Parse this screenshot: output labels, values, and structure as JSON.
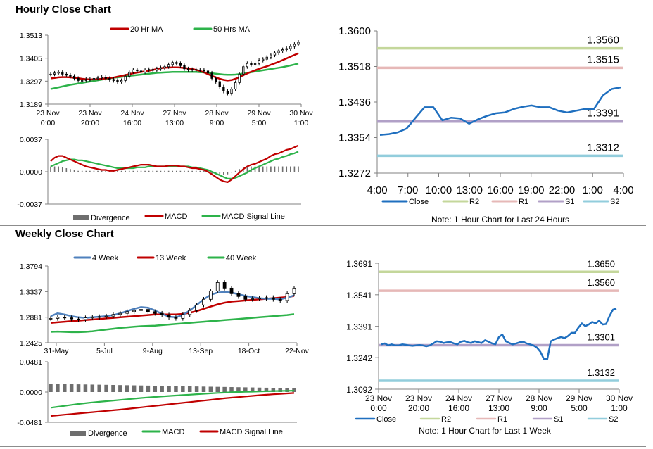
{
  "sections": {
    "hourly_title": "Hourly Close Chart",
    "weekly_title": "Weekly Close Chart"
  },
  "chart_data": [
    {
      "id": "hourly-price",
      "type": "candlestick",
      "legend": [
        "20 Hr MA",
        "50 Hrs MA"
      ],
      "colors": {
        "ma20": "#c00000",
        "ma50": "#2db34a",
        "candle": "#000000"
      },
      "y_ticks": [
        "1.3189",
        "1.3297",
        "1.3405",
        "1.3513"
      ],
      "ylim": [
        1.3189,
        1.3513
      ],
      "x_ticks": [
        [
          "23 Nov",
          "0:00"
        ],
        [
          "23 Nov",
          "20:00"
        ],
        [
          "24 Nov",
          "16:00"
        ],
        [
          "27 Nov",
          "13:00"
        ],
        [
          "28 Nov",
          "9:00"
        ],
        [
          "29 Nov",
          "5:00"
        ],
        [
          "30 Nov",
          "1:00"
        ]
      ],
      "close": [
        1.333,
        1.3335,
        1.334,
        1.333,
        1.3325,
        1.332,
        1.331,
        1.33,
        1.33,
        1.3305,
        1.3305,
        1.331,
        1.3312,
        1.3315,
        1.331,
        1.3305,
        1.33,
        1.3295,
        1.33,
        1.332,
        1.334,
        1.335,
        1.3345,
        1.334,
        1.335,
        1.3352,
        1.3348,
        1.3355,
        1.336,
        1.3365,
        1.3375,
        1.3385,
        1.338,
        1.337,
        1.3355,
        1.335,
        1.3352,
        1.335,
        1.335,
        1.3345,
        1.3335,
        1.331,
        1.3295,
        1.327,
        1.325,
        1.324,
        1.326,
        1.329,
        1.333,
        1.3365,
        1.338,
        1.3375,
        1.338,
        1.3395,
        1.34,
        1.341,
        1.342,
        1.343,
        1.344,
        1.3445,
        1.345,
        1.346,
        1.347,
        1.348
      ],
      "ma20": [
        1.331,
        1.3312,
        1.3315,
        1.3316,
        1.3316,
        1.3315,
        1.3313,
        1.3311,
        1.3308,
        1.3306,
        1.3305,
        1.3305,
        1.3306,
        1.3308,
        1.331,
        1.3312,
        1.3314,
        1.3318,
        1.3322,
        1.3326,
        1.333,
        1.3334,
        1.3337,
        1.334,
        1.3343,
        1.3346,
        1.335,
        1.3354,
        1.3358,
        1.336,
        1.3361,
        1.3362,
        1.3362,
        1.3361,
        1.3359,
        1.3357,
        1.3354,
        1.335,
        1.3345,
        1.3338,
        1.333,
        1.3322,
        1.3315,
        1.3308,
        1.3303,
        1.33,
        1.3302,
        1.3308,
        1.3316,
        1.3325,
        1.3333,
        1.3341,
        1.3348,
        1.3355,
        1.3361,
        1.3367,
        1.3374,
        1.3381,
        1.3388,
        1.3396,
        1.3404,
        1.3412,
        1.342,
        1.3428
      ],
      "ma50": [
        1.326,
        1.3264,
        1.3268,
        1.3272,
        1.3276,
        1.328,
        1.3283,
        1.3286,
        1.3289,
        1.3292,
        1.3295,
        1.3298,
        1.3301,
        1.3304,
        1.3307,
        1.331,
        1.3313,
        1.3315,
        1.3317,
        1.332,
        1.3322,
        1.3324,
        1.3326,
        1.3328,
        1.333,
        1.3332,
        1.3334,
        1.3336,
        1.3337,
        1.3338,
        1.3339,
        1.334,
        1.334,
        1.334,
        1.334,
        1.334,
        1.334,
        1.334,
        1.3339,
        1.3338,
        1.3336,
        1.3334,
        1.3332,
        1.333,
        1.3328,
        1.3327,
        1.3327,
        1.3328,
        1.333,
        1.3333,
        1.3336,
        1.3339,
        1.3342,
        1.3345,
        1.3348,
        1.3351,
        1.3354,
        1.3357,
        1.336,
        1.3363,
        1.3367,
        1.3371,
        1.3375,
        1.338
      ]
    },
    {
      "id": "hourly-macd",
      "type": "bar+line",
      "legend": [
        "Divergence",
        "MACD",
        "MACD Signal Line"
      ],
      "colors": {
        "divergence": "#6e6e6e",
        "macd": "#c00000",
        "signal": "#2db34a"
      },
      "y_ticks": [
        "0.0037",
        "0.0000",
        "-0.0037"
      ],
      "ylim": [
        -0.0037,
        0.0037
      ],
      "macd": [
        0.0012,
        0.0016,
        0.0018,
        0.0018,
        0.0016,
        0.0014,
        0.0012,
        0.001,
        0.0008,
        0.0006,
        0.0005,
        0.0004,
        0.0003,
        0.0002,
        0.0002,
        0.0001,
        0.0001,
        0.0002,
        0.0003,
        0.0004,
        0.0005,
        0.0006,
        0.0007,
        0.0008,
        0.0008,
        0.0008,
        0.0007,
        0.0006,
        0.0006,
        0.0006,
        0.0007,
        0.0007,
        0.0007,
        0.0006,
        0.0006,
        0.0005,
        0.0004,
        0.0004,
        0.0003,
        0.0002,
        0.0,
        -0.0003,
        -0.0006,
        -0.0009,
        -0.0011,
        -0.0012,
        -0.0009,
        -0.0005,
        -0.0001,
        0.0003,
        0.0006,
        0.0008,
        0.0009,
        0.0011,
        0.0013,
        0.0015,
        0.0018,
        0.002,
        0.0021,
        0.0023,
        0.0025,
        0.0026,
        0.0028,
        0.003
      ],
      "signal": [
        0.0006,
        0.0008,
        0.001,
        0.0012,
        0.0013,
        0.0014,
        0.0014,
        0.0013,
        0.0013,
        0.0012,
        0.0011,
        0.001,
        0.0009,
        0.0008,
        0.0007,
        0.0006,
        0.0005,
        0.0004,
        0.0004,
        0.0004,
        0.0004,
        0.0004,
        0.0005,
        0.0005,
        0.0005,
        0.0006,
        0.0006,
        0.0006,
        0.0006,
        0.0006,
        0.0006,
        0.0006,
        0.0006,
        0.0006,
        0.0006,
        0.0006,
        0.0005,
        0.0005,
        0.0004,
        0.0003,
        0.0002,
        0.0,
        -0.0002,
        -0.0004,
        -0.0006,
        -0.0008,
        -0.0008,
        -0.0007,
        -0.0005,
        -0.0003,
        -0.0001,
        0.0002,
        0.0004,
        0.0006,
        0.0008,
        0.001,
        0.0012,
        0.0014,
        0.0015,
        0.0017,
        0.0018,
        0.002,
        0.0021,
        0.0023
      ],
      "divergence": [
        0.0006,
        0.0006,
        0.0006,
        0.0005,
        0.0004,
        0.0003,
        0.0002,
        0.0001,
        0.0001,
        0.0001,
        0.0001,
        0.0001,
        0.0001,
        0.0001,
        0.0001,
        0.0001,
        0.0001,
        0.0001,
        0.0001,
        0.0001,
        0.0001,
        0.0001,
        0.0001,
        0.0001,
        0.0001,
        0.0001,
        0.0001,
        0.0001,
        0.0001,
        0.0001,
        0.0001,
        0.0001,
        0.0001,
        0.0001,
        0.0001,
        0.0001,
        0.0001,
        0.0001,
        0.0001,
        0.0001,
        -0.0001,
        -0.0002,
        -0.0003,
        -0.0004,
        -0.0004,
        -0.0003,
        -0.0001,
        0.0001,
        0.0003,
        0.0005,
        0.0006,
        0.0006,
        0.0006,
        0.0006,
        0.0006,
        0.0006,
        0.0006,
        0.0006,
        0.0006,
        0.0006,
        0.0006,
        0.0006,
        0.0006,
        0.0006
      ]
    },
    {
      "id": "hourly-24h",
      "type": "line",
      "y_ticks": [
        "1.3600",
        "1.3518",
        "1.3436",
        "1.3354",
        "1.3272"
      ],
      "ylim": [
        1.3272,
        1.36
      ],
      "x_ticks": [
        "4:00",
        "7:00",
        "10:00",
        "13:00",
        "16:00",
        "19:00",
        "22:00",
        "1:00",
        "4:00"
      ],
      "series": [
        {
          "name": "Close",
          "color": "#1f6fbf",
          "values": [
            1.336,
            1.3362,
            1.3366,
            1.3375,
            1.34,
            1.3424,
            1.3424,
            1.3394,
            1.34,
            1.3398,
            1.3386,
            1.3396,
            1.3404,
            1.341,
            1.3412,
            1.342,
            1.3425,
            1.3428,
            1.3424,
            1.3424,
            1.3416,
            1.3412,
            1.3416,
            1.342,
            1.342,
            1.3451,
            1.3466,
            1.347
          ]
        }
      ],
      "levels": [
        {
          "name": "R2",
          "value": 1.356,
          "label": "1.3560",
          "color": "#c4d79b"
        },
        {
          "name": "R1",
          "value": 1.3515,
          "label": "1.3515",
          "color": "#e6b8b7"
        },
        {
          "name": "S1",
          "value": 1.3391,
          "label": "1.3391",
          "color": "#b1a0c7"
        },
        {
          "name": "S2",
          "value": 1.3312,
          "label": "1.3312",
          "color": "#92cddc"
        }
      ],
      "legend": [
        "Close",
        "R2",
        "R1",
        "S1",
        "S2"
      ],
      "note": "Note: 1 Hour Chart for Last 24 Hours"
    },
    {
      "id": "weekly-price",
      "type": "candlestick",
      "legend": [
        "4 Week",
        "13 Week",
        "40 Week"
      ],
      "colors": {
        "w4": "#4f81bd",
        "w13": "#c00000",
        "w40": "#2db34a",
        "candle": "#000000"
      },
      "y_ticks": [
        "1.3794",
        "1.3337",
        "1.2881",
        "1.2425"
      ],
      "ylim": [
        1.2425,
        1.3794
      ],
      "x_ticks": [
        "31-May",
        "5-Jul",
        "9-Aug",
        "13-Sep",
        "18-Oct",
        "22-Nov"
      ],
      "close": [
        1.286,
        1.288,
        1.287,
        1.285,
        1.284,
        1.287,
        1.288,
        1.289,
        1.29,
        1.293,
        1.295,
        1.298,
        1.3,
        1.302,
        1.298,
        1.295,
        1.292,
        1.288,
        1.286,
        1.293,
        1.3,
        1.31,
        1.32,
        1.335,
        1.35,
        1.34,
        1.33,
        1.325,
        1.32,
        1.321,
        1.322,
        1.323,
        1.32,
        1.318,
        1.33,
        1.34
      ],
      "w4": [
        1.29,
        1.295,
        1.293,
        1.29,
        1.288,
        1.287,
        1.288,
        1.289,
        1.29,
        1.292,
        1.295,
        1.299,
        1.303,
        1.306,
        1.305,
        1.3,
        1.294,
        1.289,
        1.288,
        1.292,
        1.3,
        1.31,
        1.32,
        1.328,
        1.332,
        1.333,
        1.332,
        1.329,
        1.326,
        1.324,
        1.322,
        1.321,
        1.321,
        1.32,
        1.323,
        1.327
      ],
      "w13": [
        1.278,
        1.279,
        1.28,
        1.281,
        1.282,
        1.283,
        1.284,
        1.285,
        1.286,
        1.287,
        1.288,
        1.289,
        1.29,
        1.291,
        1.292,
        1.293,
        1.293,
        1.293,
        1.293,
        1.294,
        1.296,
        1.299,
        1.303,
        1.307,
        1.311,
        1.314,
        1.316,
        1.317,
        1.318,
        1.319,
        1.32,
        1.321,
        1.322,
        1.323,
        1.324,
        1.326
      ],
      "w40": [
        1.262,
        1.2625,
        1.262,
        1.2615,
        1.2615,
        1.262,
        1.263,
        1.2645,
        1.266,
        1.2675,
        1.269,
        1.27,
        1.271,
        1.272,
        1.2725,
        1.273,
        1.274,
        1.275,
        1.276,
        1.277,
        1.278,
        1.279,
        1.28,
        1.281,
        1.282,
        1.283,
        1.284,
        1.285,
        1.286,
        1.287,
        1.288,
        1.289,
        1.29,
        1.291,
        1.292,
        1.2935
      ]
    },
    {
      "id": "weekly-macd",
      "type": "bar+line",
      "legend": [
        "Divergence",
        "MACD",
        "MACD Signal Line"
      ],
      "colors": {
        "divergence": "#6e6e6e",
        "macd": "#2db34a",
        "signal": "#c00000"
      },
      "y_ticks": [
        "0.0481",
        "0.0000",
        "-0.0481"
      ],
      "ylim": [
        -0.0481,
        0.0481
      ],
      "macd": [
        -0.025,
        -0.0235,
        -0.022,
        -0.0205,
        -0.019,
        -0.0178,
        -0.0166,
        -0.0155,
        -0.0145,
        -0.0135,
        -0.0125,
        -0.0115,
        -0.0105,
        -0.0095,
        -0.0086,
        -0.0078,
        -0.007,
        -0.0063,
        -0.0056,
        -0.0049,
        -0.0042,
        -0.0035,
        -0.0028,
        -0.0021,
        -0.0015,
        -0.001,
        -0.0005,
        0.0,
        0.0003,
        0.0006,
        0.0009,
        0.0012,
        0.0015,
        0.0017,
        0.0019,
        0.0021
      ],
      "signal": [
        -0.038,
        -0.037,
        -0.036,
        -0.035,
        -0.034,
        -0.033,
        -0.032,
        -0.031,
        -0.03,
        -0.029,
        -0.028,
        -0.0268,
        -0.0256,
        -0.0244,
        -0.0232,
        -0.022,
        -0.0208,
        -0.0196,
        -0.0184,
        -0.0172,
        -0.016,
        -0.0148,
        -0.0136,
        -0.0124,
        -0.0112,
        -0.01,
        -0.009,
        -0.008,
        -0.007,
        -0.0061,
        -0.0052,
        -0.0044,
        -0.0036,
        -0.0029,
        -0.0022,
        -0.0016
      ],
      "divergence": [
        0.013,
        0.0128,
        0.0126,
        0.0124,
        0.0122,
        0.012,
        0.0118,
        0.0116,
        0.0114,
        0.0112,
        0.011,
        0.0108,
        0.0106,
        0.0104,
        0.0102,
        0.01,
        0.0098,
        0.0096,
        0.0094,
        0.0092,
        0.009,
        0.0088,
        0.0086,
        0.0084,
        0.0082,
        0.008,
        0.0078,
        0.0076,
        0.0074,
        0.0072,
        0.007,
        0.0068,
        0.0066,
        0.0064,
        0.0062,
        0.006
      ]
    },
    {
      "id": "weekly-1w",
      "type": "line",
      "y_ticks": [
        "1.3691",
        "1.3541",
        "1.3391",
        "1.3242",
        "1.3092"
      ],
      "ylim": [
        1.3092,
        1.3691
      ],
      "x_ticks": [
        [
          "23 Nov",
          "0:00"
        ],
        [
          "23 Nov",
          "20:00"
        ],
        [
          "24 Nov",
          "16:00"
        ],
        [
          "27 Nov",
          "13:00"
        ],
        [
          "28 Nov",
          "9:00"
        ],
        [
          "29 Nov",
          "5:00"
        ],
        [
          "30 Nov",
          "1:00"
        ]
      ],
      "series": [
        {
          "name": "Close",
          "color": "#1f6fbf",
          "values": [
            1.3305,
            1.331,
            1.33,
            1.3305,
            1.33,
            1.33,
            1.3305,
            1.3303,
            1.33,
            1.3298,
            1.33,
            1.3302,
            1.33,
            1.3296,
            1.33,
            1.331,
            1.332,
            1.3318,
            1.3312,
            1.3315,
            1.3316,
            1.331,
            1.3305,
            1.3318,
            1.3322,
            1.3315,
            1.3312,
            1.332,
            1.3316,
            1.3312,
            1.3325,
            1.3318,
            1.331,
            1.3306,
            1.334,
            1.3352,
            1.332,
            1.3312,
            1.3305,
            1.331,
            1.3315,
            1.3318,
            1.331,
            1.3305,
            1.33,
            1.329,
            1.327,
            1.3236,
            1.3235,
            1.332,
            1.3328,
            1.3335,
            1.334,
            1.3335,
            1.3345,
            1.336,
            1.336,
            1.3385,
            1.3405,
            1.3392,
            1.34,
            1.3412,
            1.3405,
            1.3418,
            1.34,
            1.3402,
            1.344,
            1.347,
            1.3475
          ]
        }
      ],
      "levels": [
        {
          "name": "R2",
          "value": 1.365,
          "label": "1.3650",
          "color": "#c4d79b"
        },
        {
          "name": "R1",
          "value": 1.356,
          "label": "1.3560",
          "color": "#e6b8b7"
        },
        {
          "name": "S1",
          "value": 1.3301,
          "label": "1.3301",
          "color": "#b1a0c7"
        },
        {
          "name": "S2",
          "value": 1.3132,
          "label": "1.3132",
          "color": "#92cddc"
        }
      ],
      "legend": [
        "Close",
        "R2",
        "R1",
        "S1",
        "S2"
      ],
      "note": "Note: 1 Hour Chart for Last 1 Week"
    }
  ]
}
